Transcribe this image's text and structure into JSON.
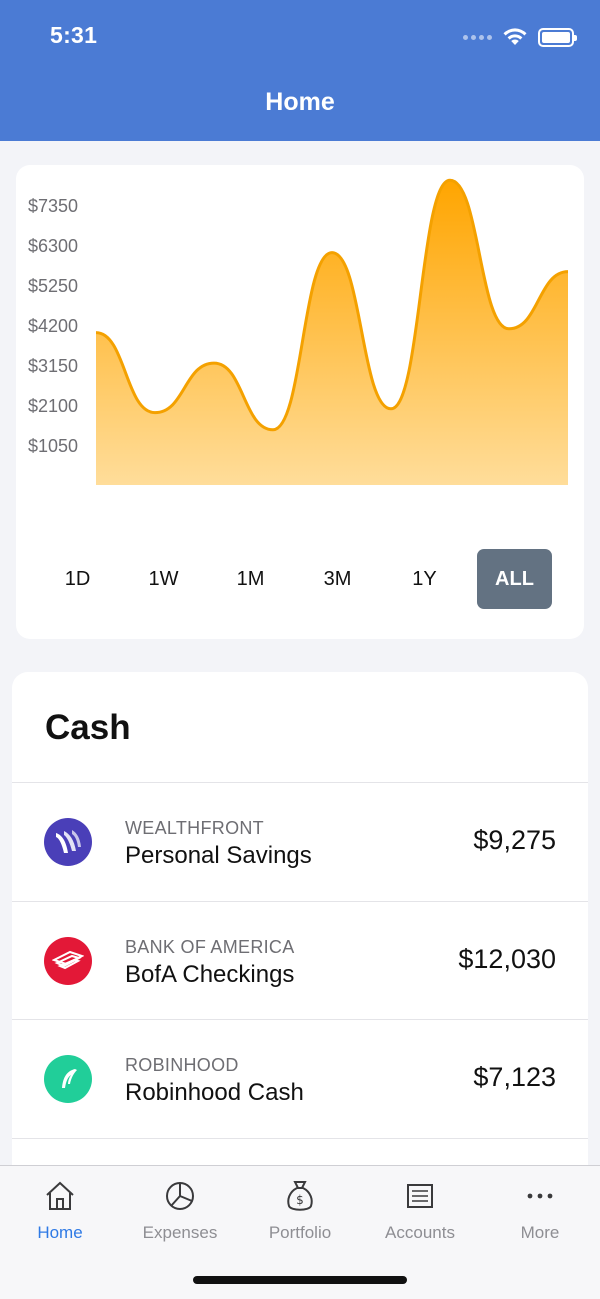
{
  "status_bar": {
    "time": "5:31"
  },
  "header": {
    "title": "Home"
  },
  "chart": {
    "y_ticks": [
      "$7350",
      "$6300",
      "$5250",
      "$4200",
      "$3150",
      "$2100",
      "$1050"
    ],
    "fill_color_top": "#ffa500",
    "fill_color_bottom": "#ffdd9a",
    "line_color": "#f4a100"
  },
  "chart_data": {
    "type": "area",
    "title": "",
    "xlabel": "",
    "ylabel": "",
    "y_ticks": [
      1050,
      2100,
      3150,
      4200,
      5250,
      6300,
      7350
    ],
    "ylim": [
      0,
      8400
    ],
    "x": [
      0,
      1,
      2,
      3,
      4,
      5,
      6,
      7,
      8
    ],
    "values": [
      4000,
      1900,
      3200,
      1450,
      6100,
      2000,
      8000,
      4100,
      5600
    ],
    "grid": false,
    "legend": "none"
  },
  "ranges": {
    "items": [
      "1D",
      "1W",
      "1M",
      "3M",
      "1Y",
      "ALL"
    ],
    "selected": "ALL"
  },
  "cash": {
    "title": "Cash",
    "accounts": [
      {
        "institution": "WEALTHFRONT",
        "name": "Personal Savings",
        "amount": "$9,275",
        "logo": "wealthfront-logo-icon",
        "color": "#4a3fb8"
      },
      {
        "institution": "BANK OF AMERICA",
        "name": "BofA Checkings",
        "amount": "$12,030",
        "logo": "bank-of-america-logo-icon",
        "color": "#e31837"
      },
      {
        "institution": "ROBINHOOD",
        "name": "Robinhood Cash",
        "amount": "$7,123",
        "logo": "robinhood-logo-icon",
        "color": "#21ce99"
      }
    ]
  },
  "tabbar": {
    "items": [
      {
        "label": "Home",
        "icon": "house-icon",
        "active": true
      },
      {
        "label": "Expenses",
        "icon": "pie-chart-icon",
        "active": false
      },
      {
        "label": "Portfolio",
        "icon": "money-bag-icon",
        "active": false
      },
      {
        "label": "Accounts",
        "icon": "list-icon",
        "active": false
      },
      {
        "label": "More",
        "icon": "more-dots-icon",
        "active": false
      }
    ],
    "active_color": "#2f7ae5"
  }
}
